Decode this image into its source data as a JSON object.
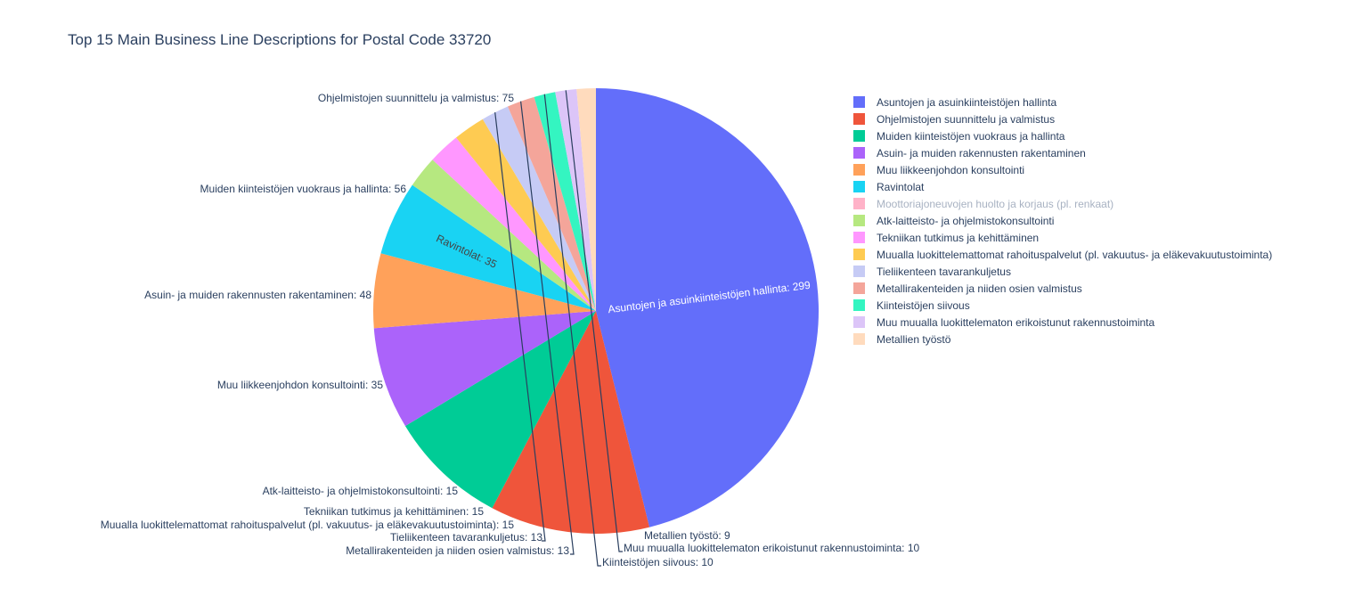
{
  "chart_data": {
    "type": "pie",
    "title": "Top 15 Main Business Line Descriptions for Postal Code 33720",
    "categories": [
      "Asuntojen ja asuinkiinteistöjen hallinta",
      "Ohjelmistojen suunnittelu ja valmistus",
      "Muiden kiinteistöjen vuokraus ja hallinta",
      "Asuin- ja muiden rakennusten rakentaminen",
      "Muu liikkeenjohdon konsultointi",
      "Ravintolat",
      "Moottoriajoneuvojen huolto ja korjaus (pl. renkaat)",
      "Atk-laitteisto- ja ohjelmistokonsultointi",
      "Tekniikan tutkimus ja kehittäminen",
      "Muualla luokittelemattomat rahoituspalvelut (pl. vakuutus- ja eläkevakuutustoiminta)",
      "Tieliikenteen tavarankuljetus",
      "Metallirakenteiden ja niiden osien valmistus",
      "Kiinteistöjen siivous",
      "Muu muualla luokittelematon erikoistunut rakennustoiminta",
      "Metallien työstö"
    ],
    "values": [
      299,
      75,
      56,
      48,
      35,
      35,
      null,
      15,
      15,
      15,
      13,
      13,
      10,
      10,
      9
    ],
    "hidden": [
      false,
      false,
      false,
      false,
      false,
      false,
      true,
      false,
      false,
      false,
      false,
      false,
      false,
      false,
      false
    ],
    "colors": [
      "#636efa",
      "#EF553B",
      "#00cc96",
      "#ab63fa",
      "#FFA15A",
      "#19d3f3",
      "#FF6692",
      "#B6E880",
      "#FF97FF",
      "#FECB52",
      "#c6cbf5",
      "#f4a59a",
      "#34f5c1",
      "#dcc5f8",
      "#ffdbbd"
    ],
    "data_labels": [
      "Asuntojen ja asuinkiinteistöjen hallinta: 299",
      "Ohjelmistojen suunnittelu ja valmistus: 75",
      "Muiden kiinteistöjen vuokraus ja hallinta: 56",
      "Asuin- ja muiden rakennusten rakentaminen: 48",
      "Muu liikkeenjohdon konsultointi: 35",
      "Ravintolat: 35",
      "",
      "Atk-laitteisto- ja ohjelmistokonsultointi: 15",
      "Tekniikan tutkimus ja kehittäminen: 15",
      "Muualla luokittelemattomat rahoituspalvelut (pl. vakuutus- ja eläkevakuutustoiminta): 15",
      "Tieliikenteen tavarankuljetus: 13",
      "Metallirakenteiden ja niiden osien valmistus: 13",
      "Kiinteistöjen siivous: 10",
      "Muu muualla luokittelematon erikoistunut rakennustoiminta: 10",
      "Metallien työstö: 9"
    ],
    "direction": "clockwise",
    "start": "top",
    "legend_placement": "right"
  }
}
